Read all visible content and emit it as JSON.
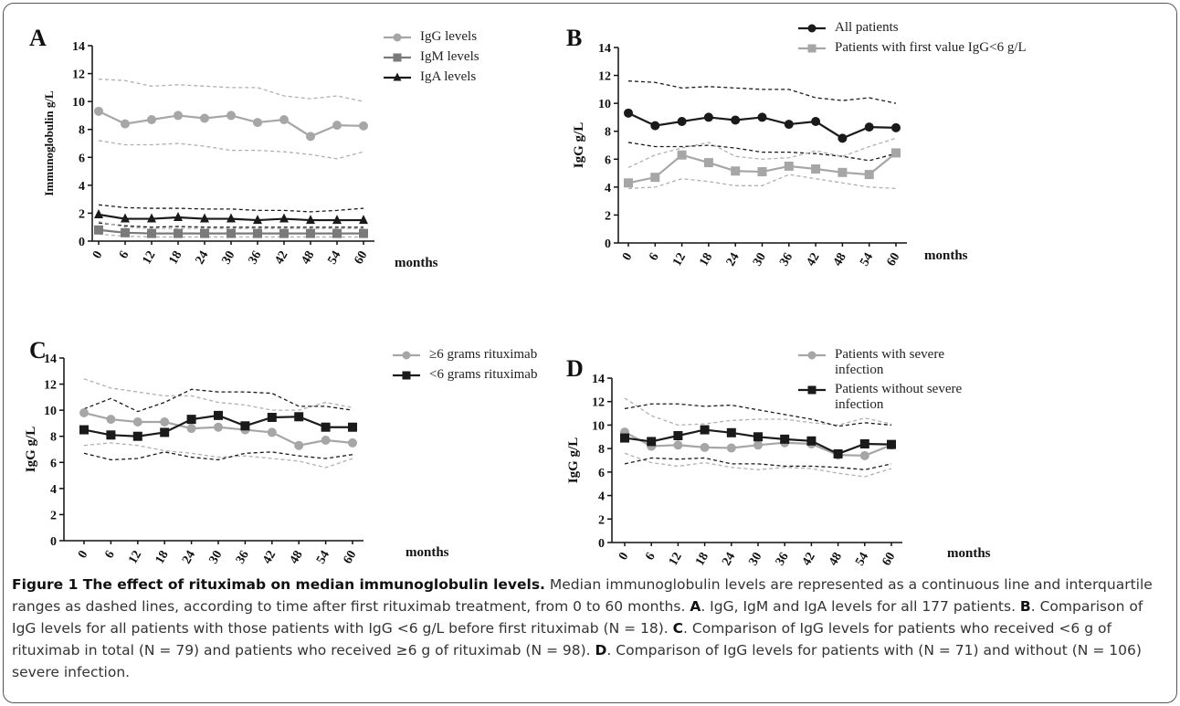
{
  "chart_data": [
    {
      "type": "line",
      "letter": "A",
      "ylabel": "Immunoglobulin g/L",
      "xlabel": "months",
      "categories": [
        "0",
        "6",
        "12",
        "18",
        "24",
        "30",
        "36",
        "42",
        "48",
        "54",
        "60"
      ],
      "ylim": [
        0,
        14
      ],
      "yticks": [
        0,
        2,
        4,
        6,
        8,
        10,
        12,
        14
      ],
      "series": [
        {
          "color": "#b0b0b0",
          "dash": true,
          "values": [
            11.6,
            11.5,
            11.1,
            11.2,
            11.1,
            11.0,
            11.0,
            10.4,
            10.2,
            10.4,
            10.0
          ]
        },
        {
          "color": "#b0b0b0",
          "dash": true,
          "values": [
            7.2,
            6.9,
            6.9,
            7.0,
            6.8,
            6.5,
            6.5,
            6.4,
            6.2,
            5.9,
            6.4
          ]
        },
        {
          "color": "#1a1a1a",
          "dash": true,
          "values": [
            2.6,
            2.4,
            2.35,
            2.35,
            2.3,
            2.3,
            2.2,
            2.2,
            2.1,
            2.2,
            2.35
          ]
        },
        {
          "color": "#1a1a1a",
          "dash": true,
          "values": [
            1.3,
            1.1,
            1.0,
            1.05,
            1.0,
            1.0,
            1.0,
            1.0,
            1.0,
            1.0,
            1.0
          ]
        },
        {
          "color": "#b0b0b0",
          "dash": true,
          "values": [
            1.4,
            1.0,
            0.9,
            0.9,
            0.9,
            0.9,
            0.9,
            0.9,
            0.9,
            0.9,
            0.9
          ]
        },
        {
          "color": "#b0b0b0",
          "dash": true,
          "values": [
            0.5,
            0.35,
            0.3,
            0.3,
            0.3,
            0.3,
            0.3,
            0.3,
            0.3,
            0.3,
            0.3
          ]
        },
        {
          "name": "IgG levels",
          "color": "#a6a6a6",
          "marker": "circle",
          "values": [
            9.3,
            8.4,
            8.7,
            9.0,
            8.8,
            9.0,
            8.5,
            8.7,
            7.5,
            8.3,
            8.25
          ]
        },
        {
          "name": "IgM levels",
          "color": "#7a7a7a",
          "marker": "square",
          "values": [
            0.8,
            0.6,
            0.55,
            0.55,
            0.55,
            0.55,
            0.55,
            0.55,
            0.55,
            0.55,
            0.55
          ]
        },
        {
          "name": "IgA levels",
          "color": "#1a1a1a",
          "marker": "triangle",
          "values": [
            1.9,
            1.6,
            1.6,
            1.7,
            1.6,
            1.6,
            1.5,
            1.6,
            1.5,
            1.5,
            1.5
          ]
        }
      ]
    },
    {
      "type": "line",
      "letter": "B",
      "ylabel": "IgG g/L",
      "xlabel": "months",
      "categories": [
        "0",
        "6",
        "12",
        "18",
        "24",
        "30",
        "36",
        "42",
        "48",
        "54",
        "60"
      ],
      "ylim": [
        0,
        14
      ],
      "yticks": [
        0,
        2,
        4,
        6,
        8,
        10,
        12,
        14
      ],
      "series": [
        {
          "color": "#1a1a1a",
          "dash": true,
          "values": [
            11.6,
            11.5,
            11.1,
            11.2,
            11.1,
            11.0,
            11.0,
            10.4,
            10.2,
            10.4,
            10.0
          ]
        },
        {
          "color": "#1a1a1a",
          "dash": true,
          "values": [
            7.2,
            6.9,
            6.9,
            7.0,
            6.8,
            6.5,
            6.5,
            6.4,
            6.2,
            5.9,
            6.4
          ]
        },
        {
          "color": "#b0b0b0",
          "dash": true,
          "values": [
            5.4,
            6.3,
            6.8,
            7.2,
            6.2,
            6.0,
            6.1,
            6.6,
            6.2,
            6.9,
            7.5
          ]
        },
        {
          "color": "#b0b0b0",
          "dash": true,
          "values": [
            3.9,
            4.0,
            4.6,
            4.4,
            4.1,
            4.1,
            4.9,
            4.6,
            4.3,
            4.0,
            3.9
          ]
        },
        {
          "name": "All patients",
          "color": "#1a1a1a",
          "marker": "circle",
          "values": [
            9.3,
            8.4,
            8.7,
            9.0,
            8.8,
            9.0,
            8.5,
            8.7,
            7.5,
            8.3,
            8.25
          ]
        },
        {
          "name": "Patients with first value IgG<6 g/L",
          "color": "#a6a6a6",
          "marker": "square",
          "values": [
            4.3,
            4.7,
            6.3,
            5.75,
            5.15,
            5.1,
            5.5,
            5.3,
            5.05,
            4.9,
            6.45
          ]
        }
      ]
    },
    {
      "type": "line",
      "letter": "C",
      "ylabel": "IgG g/L",
      "xlabel": "months",
      "categories": [
        "0",
        "6",
        "12",
        "18",
        "24",
        "30",
        "36",
        "42",
        "48",
        "54",
        "60"
      ],
      "ylim": [
        0,
        14
      ],
      "yticks": [
        0,
        2,
        4,
        6,
        8,
        10,
        12,
        14
      ],
      "series": [
        {
          "color": "#b0b0b0",
          "dash": true,
          "values": [
            12.4,
            11.7,
            11.4,
            11.1,
            11.1,
            10.6,
            10.4,
            10.0,
            10.0,
            10.6,
            10.2
          ]
        },
        {
          "color": "#b0b0b0",
          "dash": true,
          "values": [
            7.3,
            7.5,
            7.3,
            6.9,
            6.7,
            6.4,
            6.5,
            6.3,
            6.1,
            5.6,
            6.3
          ]
        },
        {
          "color": "#1a1a1a",
          "dash": true,
          "values": [
            10.1,
            10.9,
            9.9,
            10.6,
            11.6,
            11.4,
            11.4,
            11.3,
            10.3,
            10.3,
            10.0
          ]
        },
        {
          "color": "#1a1a1a",
          "dash": true,
          "values": [
            6.7,
            6.2,
            6.3,
            6.8,
            6.4,
            6.2,
            6.7,
            6.8,
            6.5,
            6.3,
            6.6
          ]
        },
        {
          "name": "≥6 grams rituximab",
          "color": "#a6a6a6",
          "marker": "circle",
          "values": [
            9.8,
            9.3,
            9.1,
            9.1,
            8.6,
            8.7,
            8.5,
            8.3,
            7.3,
            7.7,
            7.5
          ]
        },
        {
          "name": "<6 grams rituximab",
          "color": "#1a1a1a",
          "marker": "square",
          "values": [
            8.5,
            8.1,
            8.0,
            8.3,
            9.3,
            9.6,
            8.8,
            9.45,
            9.5,
            8.7,
            8.7
          ]
        }
      ]
    },
    {
      "type": "line",
      "letter": "D",
      "ylabel": "IgG g/L",
      "xlabel": "months",
      "categories": [
        "0",
        "6",
        "12",
        "18",
        "24",
        "30",
        "36",
        "42",
        "48",
        "54",
        "60"
      ],
      "ylim": [
        0,
        14
      ],
      "yticks": [
        0,
        2,
        4,
        6,
        8,
        10,
        12,
        14
      ],
      "series": [
        {
          "color": "#b0b0b0",
          "dash": true,
          "values": [
            12.3,
            10.8,
            10.0,
            10.1,
            10.4,
            10.5,
            10.5,
            10.2,
            10.0,
            10.6,
            10.1
          ]
        },
        {
          "color": "#b0b0b0",
          "dash": true,
          "values": [
            7.6,
            6.8,
            6.5,
            6.8,
            6.4,
            6.2,
            6.4,
            6.3,
            5.9,
            5.6,
            6.3
          ]
        },
        {
          "color": "#1a1a1a",
          "dash": true,
          "values": [
            11.4,
            11.8,
            11.8,
            11.6,
            11.7,
            11.3,
            10.9,
            10.5,
            9.9,
            10.2,
            10.0
          ]
        },
        {
          "color": "#1a1a1a",
          "dash": true,
          "values": [
            6.7,
            7.2,
            7.1,
            7.2,
            6.7,
            6.7,
            6.5,
            6.5,
            6.4,
            6.2,
            6.7
          ]
        },
        {
          "name": "Patients with severe infection",
          "color": "#a6a6a6",
          "marker": "circle",
          "values": [
            9.4,
            8.2,
            8.3,
            8.1,
            8.05,
            8.3,
            8.5,
            8.4,
            7.45,
            7.4,
            8.3
          ]
        },
        {
          "name": "Patients without severe infection",
          "color": "#1a1a1a",
          "marker": "square",
          "values": [
            8.9,
            8.6,
            9.1,
            9.6,
            9.35,
            9.0,
            8.8,
            8.65,
            7.55,
            8.4,
            8.35
          ]
        }
      ]
    }
  ],
  "caption": {
    "title": "Figure 1 The effect of rituximab on median immunoglobulin levels.",
    "parts": [
      " Median immunoglobulin levels are represented as a continuous line and interquartile ranges as dashed lines, according to time after first rituximab treatment, from 0 to 60 months. ",
      "A",
      ". IgG, IgM and IgA levels for all 177 patients. ",
      "B",
      ". Comparison of IgG levels for all patients with those patients with IgG <6 g/L before first rituximab (N = 18). ",
      "C",
      ". Comparison of IgG levels for patients who received <6 g of rituximab in total (N = 79) and patients who received ≥6 g of rituximab (N = 98). ",
      "D",
      ". Comparison of IgG levels for patients with (N = 71) and without (N = 106) severe infection."
    ]
  }
}
